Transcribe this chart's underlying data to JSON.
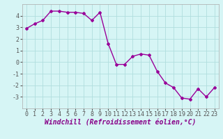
{
  "x": [
    0,
    1,
    2,
    3,
    4,
    5,
    6,
    7,
    8,
    9,
    10,
    11,
    12,
    13,
    14,
    15,
    16,
    17,
    18,
    19,
    20,
    21,
    22,
    23
  ],
  "y": [
    2.9,
    3.3,
    3.6,
    4.4,
    4.4,
    4.3,
    4.3,
    4.2,
    3.6,
    4.3,
    1.6,
    -0.2,
    -0.2,
    0.5,
    0.7,
    0.6,
    -0.8,
    -1.8,
    -2.2,
    -3.1,
    -3.2,
    -2.3,
    -3.0,
    -2.2
  ],
  "line_color": "#990099",
  "marker": "D",
  "marker_size": 2,
  "bg_color": "#d6f5f5",
  "grid_color": "#b0dede",
  "xlabel": "Windchill (Refroidissement éolien,°C)",
  "xlim": [
    -0.5,
    23.5
  ],
  "ylim": [
    -4,
    5
  ],
  "yticks": [
    -3,
    -2,
    -1,
    0,
    1,
    2,
    3,
    4
  ],
  "xticks": [
    0,
    1,
    2,
    3,
    4,
    5,
    6,
    7,
    8,
    9,
    10,
    11,
    12,
    13,
    14,
    15,
    16,
    17,
    18,
    19,
    20,
    21,
    22,
    23
  ],
  "xlabel_fontsize": 7,
  "tick_fontsize": 6,
  "line_width": 1.0
}
